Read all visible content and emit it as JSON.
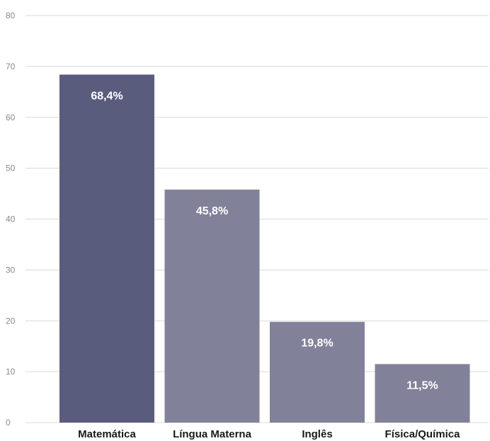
{
  "chart_data": {
    "type": "bar",
    "categories": [
      "Matemática",
      "Língua Materna",
      "Inglês",
      "Física/Química"
    ],
    "values": [
      68.4,
      45.8,
      19.8,
      11.5
    ],
    "data_labels": [
      "68,4%",
      "45,8%",
      "19,8%",
      "11,5%"
    ],
    "title": "",
    "xlabel": "",
    "ylabel": "",
    "ylim": [
      0,
      80
    ],
    "yticks": [
      0,
      10,
      20,
      30,
      40,
      50,
      60,
      70,
      80
    ],
    "grid": true,
    "legend": "none",
    "colors": [
      "#5a5c7e",
      "#818199",
      "#818199",
      "#818199"
    ]
  }
}
